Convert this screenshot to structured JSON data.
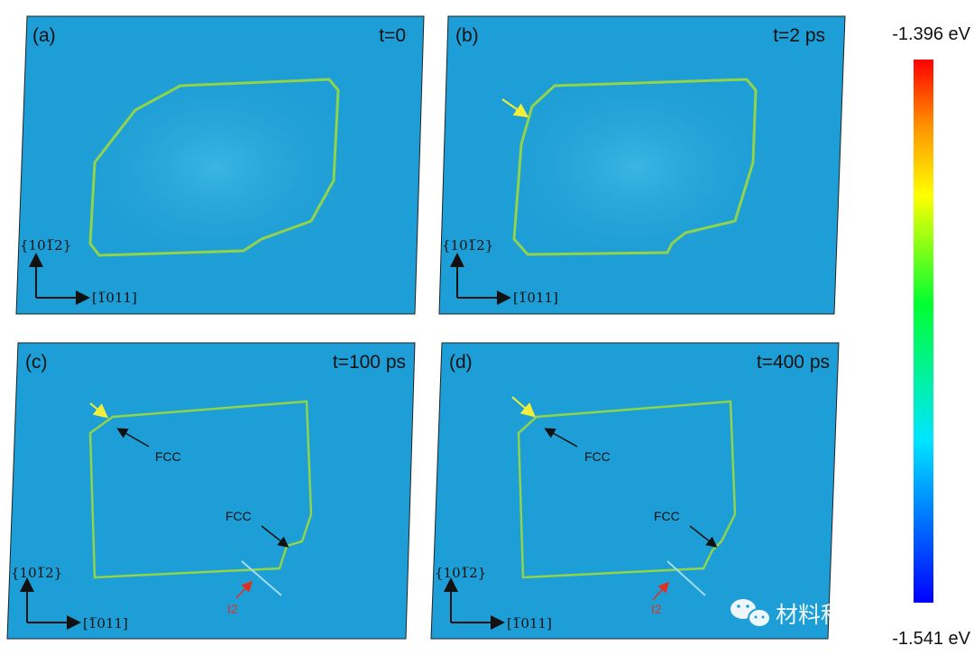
{
  "panels": [
    {
      "label": "(a)",
      "time": "t=0",
      "axis_normal": "{101̅2}",
      "axis_direction": "[1̅011]"
    },
    {
      "label": "(b)",
      "time": "t=2 ps",
      "axis_normal": "{101̅2}",
      "axis_direction": "[1̅011]"
    },
    {
      "label": "(c)",
      "time": "t=100 ps",
      "axis_normal": "{101̅2}",
      "axis_direction": "[1̅011]",
      "annotations": [
        "FCC",
        "FCC",
        "I2"
      ]
    },
    {
      "label": "(d)",
      "time": "t=400 ps",
      "axis_normal": "{101̅2}",
      "axis_direction": "[1̅011]",
      "annotations": [
        "FCC",
        "FCC",
        "I2"
      ]
    }
  ],
  "colorbar": {
    "max_label": "-1.396 eV",
    "min_label": "-1.541 eV",
    "colormap": "jet"
  },
  "colors": {
    "background": "#1e9ed6",
    "loop": "#8fd44a",
    "yellow_arrow": "#f2ee3a",
    "red_arrow": "#e03020"
  },
  "watermark": {
    "icon": "wechat-icon",
    "text": "材料科学与工程"
  }
}
